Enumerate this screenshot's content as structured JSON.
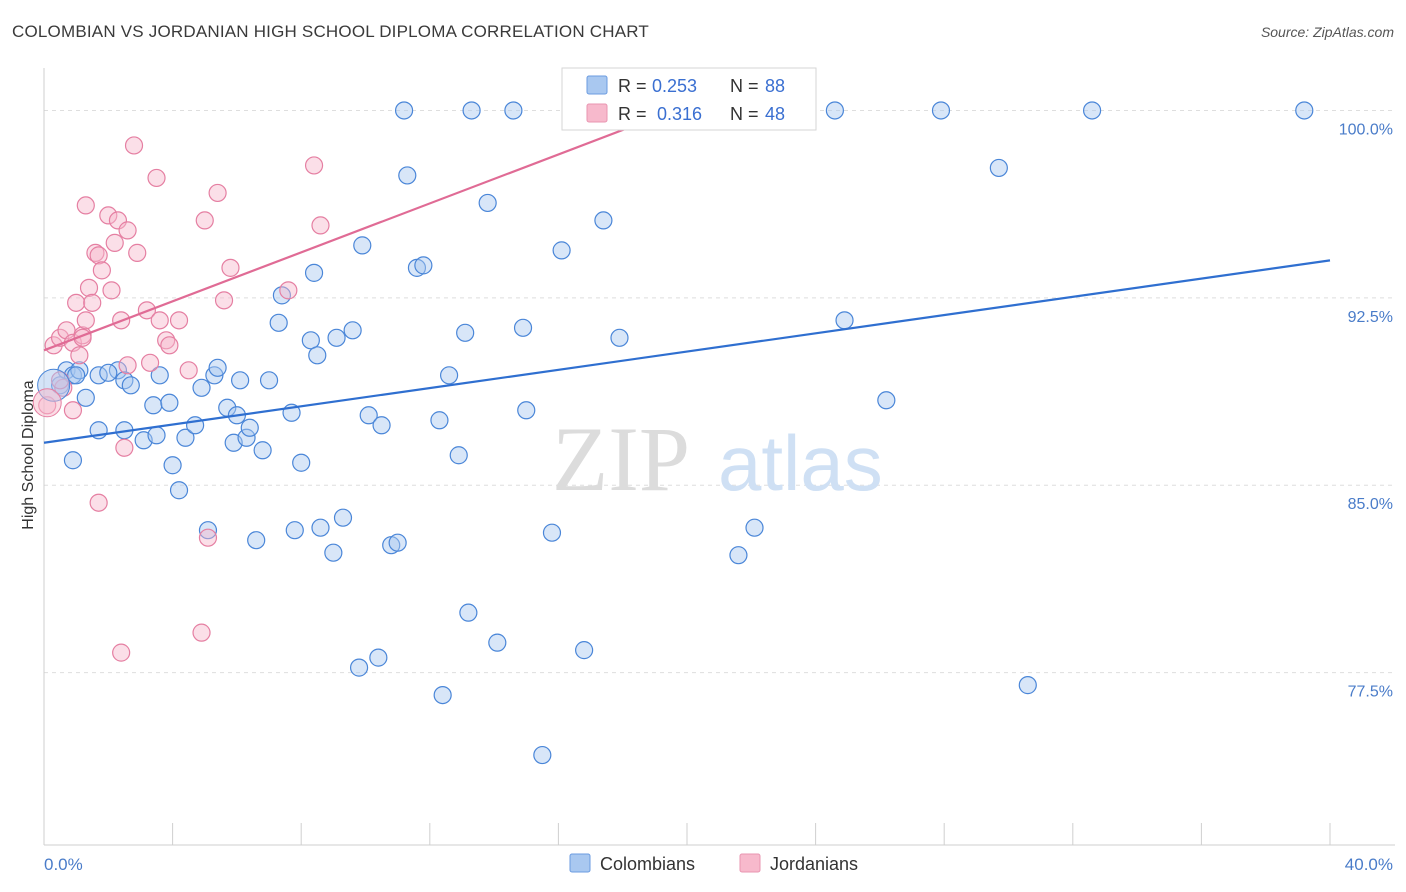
{
  "title": "COLOMBIAN VS JORDANIAN HIGH SCHOOL DIPLOMA CORRELATION CHART",
  "source": "Source: ZipAtlas.com",
  "watermark": {
    "zip": "ZIP",
    "atlas": "atlas"
  },
  "legend_top": {
    "rows": [
      {
        "r_label": "R = ",
        "r_value": "0.253",
        "n_label": "N = ",
        "n_value": "88",
        "color": "#a9c8f0"
      },
      {
        "r_label": "R = ",
        "r_value": "0.316",
        "n_label": "N = ",
        "n_value": "48",
        "color": "#f7b9cc"
      }
    ]
  },
  "legend_bottom": [
    {
      "label": "Colombians",
      "color": "#a9c8f0"
    },
    {
      "label": "Jordanians",
      "color": "#f7b9cc"
    }
  ],
  "chart_data": {
    "type": "scatter",
    "title": "COLOMBIAN VS JORDANIAN HIGH SCHOOL DIPLOMA CORRELATION CHART",
    "xlabel": "",
    "ylabel": "High School Diploma",
    "xlim": [
      0,
      40
    ],
    "ylim": [
      70.6,
      101.7
    ],
    "x_tick_labels": [
      "0.0%",
      "40.0%"
    ],
    "y_ticks": [
      77.5,
      85.0,
      92.5,
      100.0
    ],
    "y_tick_labels": [
      "77.5%",
      "85.0%",
      "92.5%",
      "100.0%"
    ],
    "grid": true,
    "legend": "top-center",
    "series": [
      {
        "name": "Colombians",
        "color": "#4a86d8",
        "fill": "#a9c8f0",
        "trend": {
          "x0": 0,
          "y0": 86.7,
          "x1": 40,
          "y1": 94.0,
          "color": "#2f6fd0"
        },
        "points": [
          [
            0.5,
            89.0
          ],
          [
            0.7,
            89.6
          ],
          [
            0.9,
            89.4
          ],
          [
            1.1,
            89.6
          ],
          [
            1.3,
            88.5
          ],
          [
            1.7,
            89.4
          ],
          [
            2.3,
            89.6
          ],
          [
            2.5,
            89.2
          ],
          [
            2.7,
            89.0
          ],
          [
            3.6,
            89.4
          ],
          [
            0.9,
            86.0
          ],
          [
            1.7,
            87.2
          ],
          [
            2.5,
            87.2
          ],
          [
            3.1,
            86.8
          ],
          [
            3.4,
            88.2
          ],
          [
            3.5,
            87.0
          ],
          [
            3.9,
            88.3
          ],
          [
            4.0,
            85.8
          ],
          [
            4.2,
            84.8
          ],
          [
            4.4,
            86.9
          ],
          [
            4.7,
            87.4
          ],
          [
            4.9,
            88.9
          ],
          [
            5.1,
            83.2
          ],
          [
            5.3,
            89.4
          ],
          [
            5.4,
            89.7
          ],
          [
            5.7,
            88.1
          ],
          [
            5.9,
            86.7
          ],
          [
            6.0,
            87.8
          ],
          [
            6.3,
            86.9
          ],
          [
            6.4,
            87.3
          ],
          [
            6.6,
            82.8
          ],
          [
            6.8,
            86.4
          ],
          [
            7.0,
            89.2
          ],
          [
            7.3,
            91.5
          ],
          [
            7.4,
            92.6
          ],
          [
            7.7,
            87.9
          ],
          [
            7.8,
            83.2
          ],
          [
            8.0,
            85.9
          ],
          [
            8.3,
            90.8
          ],
          [
            8.4,
            93.5
          ],
          [
            8.6,
            83.3
          ],
          [
            8.5,
            90.2
          ],
          [
            9.0,
            82.3
          ],
          [
            9.1,
            90.9
          ],
          [
            9.3,
            83.7
          ],
          [
            9.6,
            91.2
          ],
          [
            9.8,
            77.7
          ],
          [
            9.9,
            94.6
          ],
          [
            10.1,
            87.8
          ],
          [
            10.4,
            78.1
          ],
          [
            10.5,
            87.4
          ],
          [
            10.8,
            82.6
          ],
          [
            11.0,
            82.7
          ],
          [
            11.2,
            100.0
          ],
          [
            11.3,
            97.4
          ],
          [
            11.6,
            93.7
          ],
          [
            11.8,
            93.8
          ],
          [
            12.3,
            87.6
          ],
          [
            12.4,
            76.6
          ],
          [
            12.6,
            89.4
          ],
          [
            12.9,
            86.2
          ],
          [
            13.1,
            91.1
          ],
          [
            13.2,
            79.9
          ],
          [
            13.3,
            100.0
          ],
          [
            13.8,
            96.3
          ],
          [
            14.1,
            78.7
          ],
          [
            14.6,
            100.0
          ],
          [
            14.9,
            91.3
          ],
          [
            15.0,
            88.0
          ],
          [
            15.5,
            74.2
          ],
          [
            15.8,
            83.1
          ],
          [
            16.1,
            94.4
          ],
          [
            16.8,
            78.4
          ],
          [
            17.4,
            95.6
          ],
          [
            17.9,
            90.9
          ],
          [
            21.6,
            82.2
          ],
          [
            22.1,
            83.3
          ],
          [
            24.6,
            100.0
          ],
          [
            24.9,
            91.6
          ],
          [
            26.2,
            88.4
          ],
          [
            27.9,
            100.0
          ],
          [
            29.7,
            97.7
          ],
          [
            30.6,
            77.0
          ],
          [
            32.6,
            100.0
          ],
          [
            39.2,
            100.0
          ],
          [
            1.0,
            89.4
          ],
          [
            2.0,
            89.5
          ],
          [
            6.1,
            89.2
          ]
        ]
      },
      {
        "name": "Jordanians",
        "color": "#e57fa2",
        "fill": "#f7b9cc",
        "trend": {
          "x0": 0,
          "y0": 90.4,
          "x1": 20.0,
          "y1": 100.2,
          "color": "#e06b95"
        },
        "points": [
          [
            0.1,
            88.2
          ],
          [
            0.3,
            90.6
          ],
          [
            0.5,
            90.9
          ],
          [
            0.6,
            88.9
          ],
          [
            0.7,
            91.2
          ],
          [
            0.9,
            90.7
          ],
          [
            0.9,
            88.0
          ],
          [
            1.0,
            92.3
          ],
          [
            1.1,
            90.2
          ],
          [
            1.2,
            91.0
          ],
          [
            1.3,
            91.6
          ],
          [
            1.3,
            96.2
          ],
          [
            1.4,
            92.9
          ],
          [
            1.5,
            92.3
          ],
          [
            1.6,
            94.3
          ],
          [
            1.7,
            84.3
          ],
          [
            1.7,
            94.2
          ],
          [
            1.8,
            93.6
          ],
          [
            2.0,
            95.8
          ],
          [
            2.1,
            92.8
          ],
          [
            2.2,
            94.7
          ],
          [
            2.3,
            95.6
          ],
          [
            2.4,
            78.3
          ],
          [
            2.4,
            91.6
          ],
          [
            2.5,
            86.5
          ],
          [
            2.6,
            89.8
          ],
          [
            2.6,
            95.2
          ],
          [
            2.8,
            98.6
          ],
          [
            2.9,
            94.3
          ],
          [
            3.2,
            92.0
          ],
          [
            3.3,
            89.9
          ],
          [
            3.5,
            97.3
          ],
          [
            3.6,
            91.6
          ],
          [
            3.8,
            90.8
          ],
          [
            4.2,
            91.6
          ],
          [
            4.5,
            89.6
          ],
          [
            4.9,
            79.1
          ],
          [
            5.0,
            95.6
          ],
          [
            5.1,
            82.9
          ],
          [
            5.4,
            96.7
          ],
          [
            5.6,
            92.4
          ],
          [
            5.8,
            93.7
          ],
          [
            7.6,
            92.8
          ],
          [
            8.4,
            97.8
          ],
          [
            8.6,
            95.4
          ],
          [
            3.9,
            90.6
          ],
          [
            1.2,
            90.9
          ],
          [
            0.5,
            89.2
          ]
        ]
      }
    ]
  }
}
